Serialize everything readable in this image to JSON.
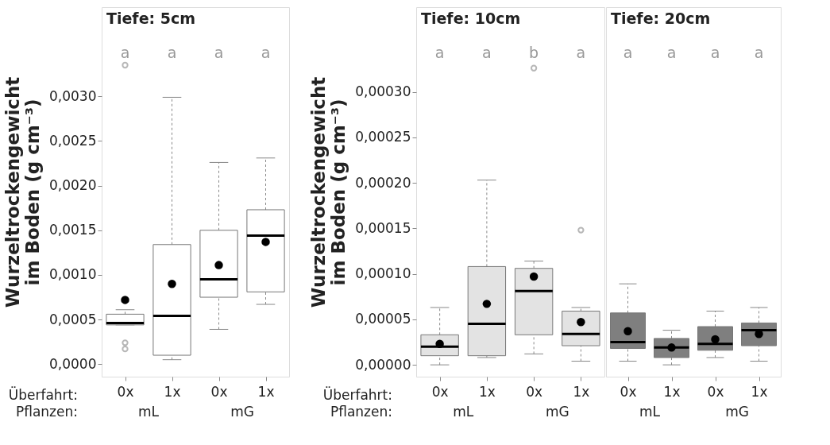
{
  "chart_data": [
    {
      "type": "box",
      "title": "Tiefe: 5cm",
      "ylabel": "Wurzeltrockengewicht\nim Boden (g cm⁻³)",
      "categories": [
        "0x",
        "1x",
        "0x",
        "1x"
      ],
      "annotations": [
        "a",
        "a",
        "a",
        "a",
        "Überfahrt:",
        "Pflanzen:",
        "mL",
        "mG"
      ],
      "series": [
        {
          "color": "#ffffff",
          "boxes": [
            {
              "low": 0.00044,
              "q1": 0.00044,
              "median": 0.00046,
              "q3": 0.00056,
              "high": 0.00061,
              "mean": 0.00072,
              "outliers": [
                0.00024,
                0.00017,
                0.00335
              ]
            },
            {
              "low": 5e-05,
              "q1": 0.0001,
              "median": 0.00054,
              "q3": 0.00134,
              "high": 0.00299,
              "mean": 0.0009
            },
            {
              "low": 0.00039,
              "q1": 0.00075,
              "median": 0.00095,
              "q3": 0.0015,
              "high": 0.00226,
              "mean": 0.00111
            },
            {
              "low": 0.00067,
              "q1": 0.00081,
              "median": 0.00144,
              "q3": 0.00173,
              "high": 0.00231,
              "mean": 0.00137
            }
          ]
        }
      ],
      "ylim": [
        -0.00014,
        0.004
      ],
      "yticks": [
        {
          "value": 0,
          "label": "0,0000"
        },
        {
          "value": 0.0005,
          "label": "0,0005"
        },
        {
          "value": 0.001,
          "label": "0,0010"
        },
        {
          "value": 0.0015,
          "label": "0,0015"
        },
        {
          "value": 0.002,
          "label": "0,0020"
        },
        {
          "value": 0.0025,
          "label": "0,0025"
        },
        {
          "value": 0.003,
          "label": "0,0030"
        }
      ],
      "marker": "circle",
      "grid": false
    },
    {
      "type": "box",
      "title": "Tiefe: 10cm",
      "ylabel": "Wurzeltrockengewicht\nim Boden (g cm⁻³)",
      "categories": [
        "0x",
        "1x",
        "0x",
        "1x"
      ],
      "annotations": [
        "a",
        "a",
        "b",
        "a",
        "Überfahrt:",
        "Pflanzen:",
        "mL",
        "mG"
      ],
      "series": [
        {
          "color": "#e3e3e3",
          "boxes": [
            {
              "low": 0.0,
              "q1": 1e-05,
              "median": 2e-05,
              "q3": 3.3e-05,
              "high": 6.3e-05,
              "mean": 2.3e-05
            },
            {
              "low": 8e-06,
              "q1": 1e-05,
              "median": 4.5e-05,
              "q3": 0.000108,
              "high": 0.000203,
              "mean": 6.7e-05
            },
            {
              "low": 1.2e-05,
              "q1": 3.3e-05,
              "median": 8.1e-05,
              "q3": 0.000106,
              "high": 0.000114,
              "mean": 9.7e-05,
              "outliers": [
                0.000326
              ]
            },
            {
              "low": 4e-06,
              "q1": 2.1e-05,
              "median": 3.4e-05,
              "q3": 5.9e-05,
              "high": 6.3e-05,
              "mean": 4.7e-05,
              "outliers": [
                0.000148
              ]
            }
          ]
        }
      ],
      "ylim": [
        -1.3e-05,
        0.000393
      ],
      "yticks": [
        {
          "value": 0,
          "label": "0,00000"
        },
        {
          "value": 5e-05,
          "label": "0,00005"
        },
        {
          "value": 0.0001,
          "label": "0,00010"
        },
        {
          "value": 0.00015,
          "label": "0,00015"
        },
        {
          "value": 0.0002,
          "label": "0,00020"
        },
        {
          "value": 0.00025,
          "label": "0,00025"
        },
        {
          "value": 0.0003,
          "label": "0,00030"
        }
      ],
      "marker": "circle",
      "grid": false
    },
    {
      "type": "box",
      "title": "Tiefe: 20cm",
      "categories": [
        "0x",
        "1x",
        "0x",
        "1x"
      ],
      "annotations": [
        "a",
        "a",
        "a",
        "a",
        "mL",
        "mG"
      ],
      "series": [
        {
          "color": "#7f7f7f",
          "boxes": [
            {
              "low": 4e-06,
              "q1": 1.8e-05,
              "median": 2.5e-05,
              "q3": 5.7e-05,
              "high": 8.9e-05,
              "mean": 3.7e-05
            },
            {
              "low": 0.0,
              "q1": 8e-06,
              "median": 1.9e-05,
              "q3": 2.9e-05,
              "high": 3.8e-05,
              "mean": 1.9e-05
            },
            {
              "low": 8e-06,
              "q1": 1.6e-05,
              "median": 2.3e-05,
              "q3": 4.2e-05,
              "high": 5.9e-05,
              "mean": 2.8e-05
            },
            {
              "low": 4e-06,
              "q1": 2.1e-05,
              "median": 3.8e-05,
              "q3": 4.6e-05,
              "high": 6.3e-05,
              "mean": 3.4e-05
            }
          ]
        }
      ],
      "ylim": [
        -1.3e-05,
        0.000393
      ],
      "tick_labels": "x",
      "marker": "circle",
      "grid": false
    }
  ]
}
